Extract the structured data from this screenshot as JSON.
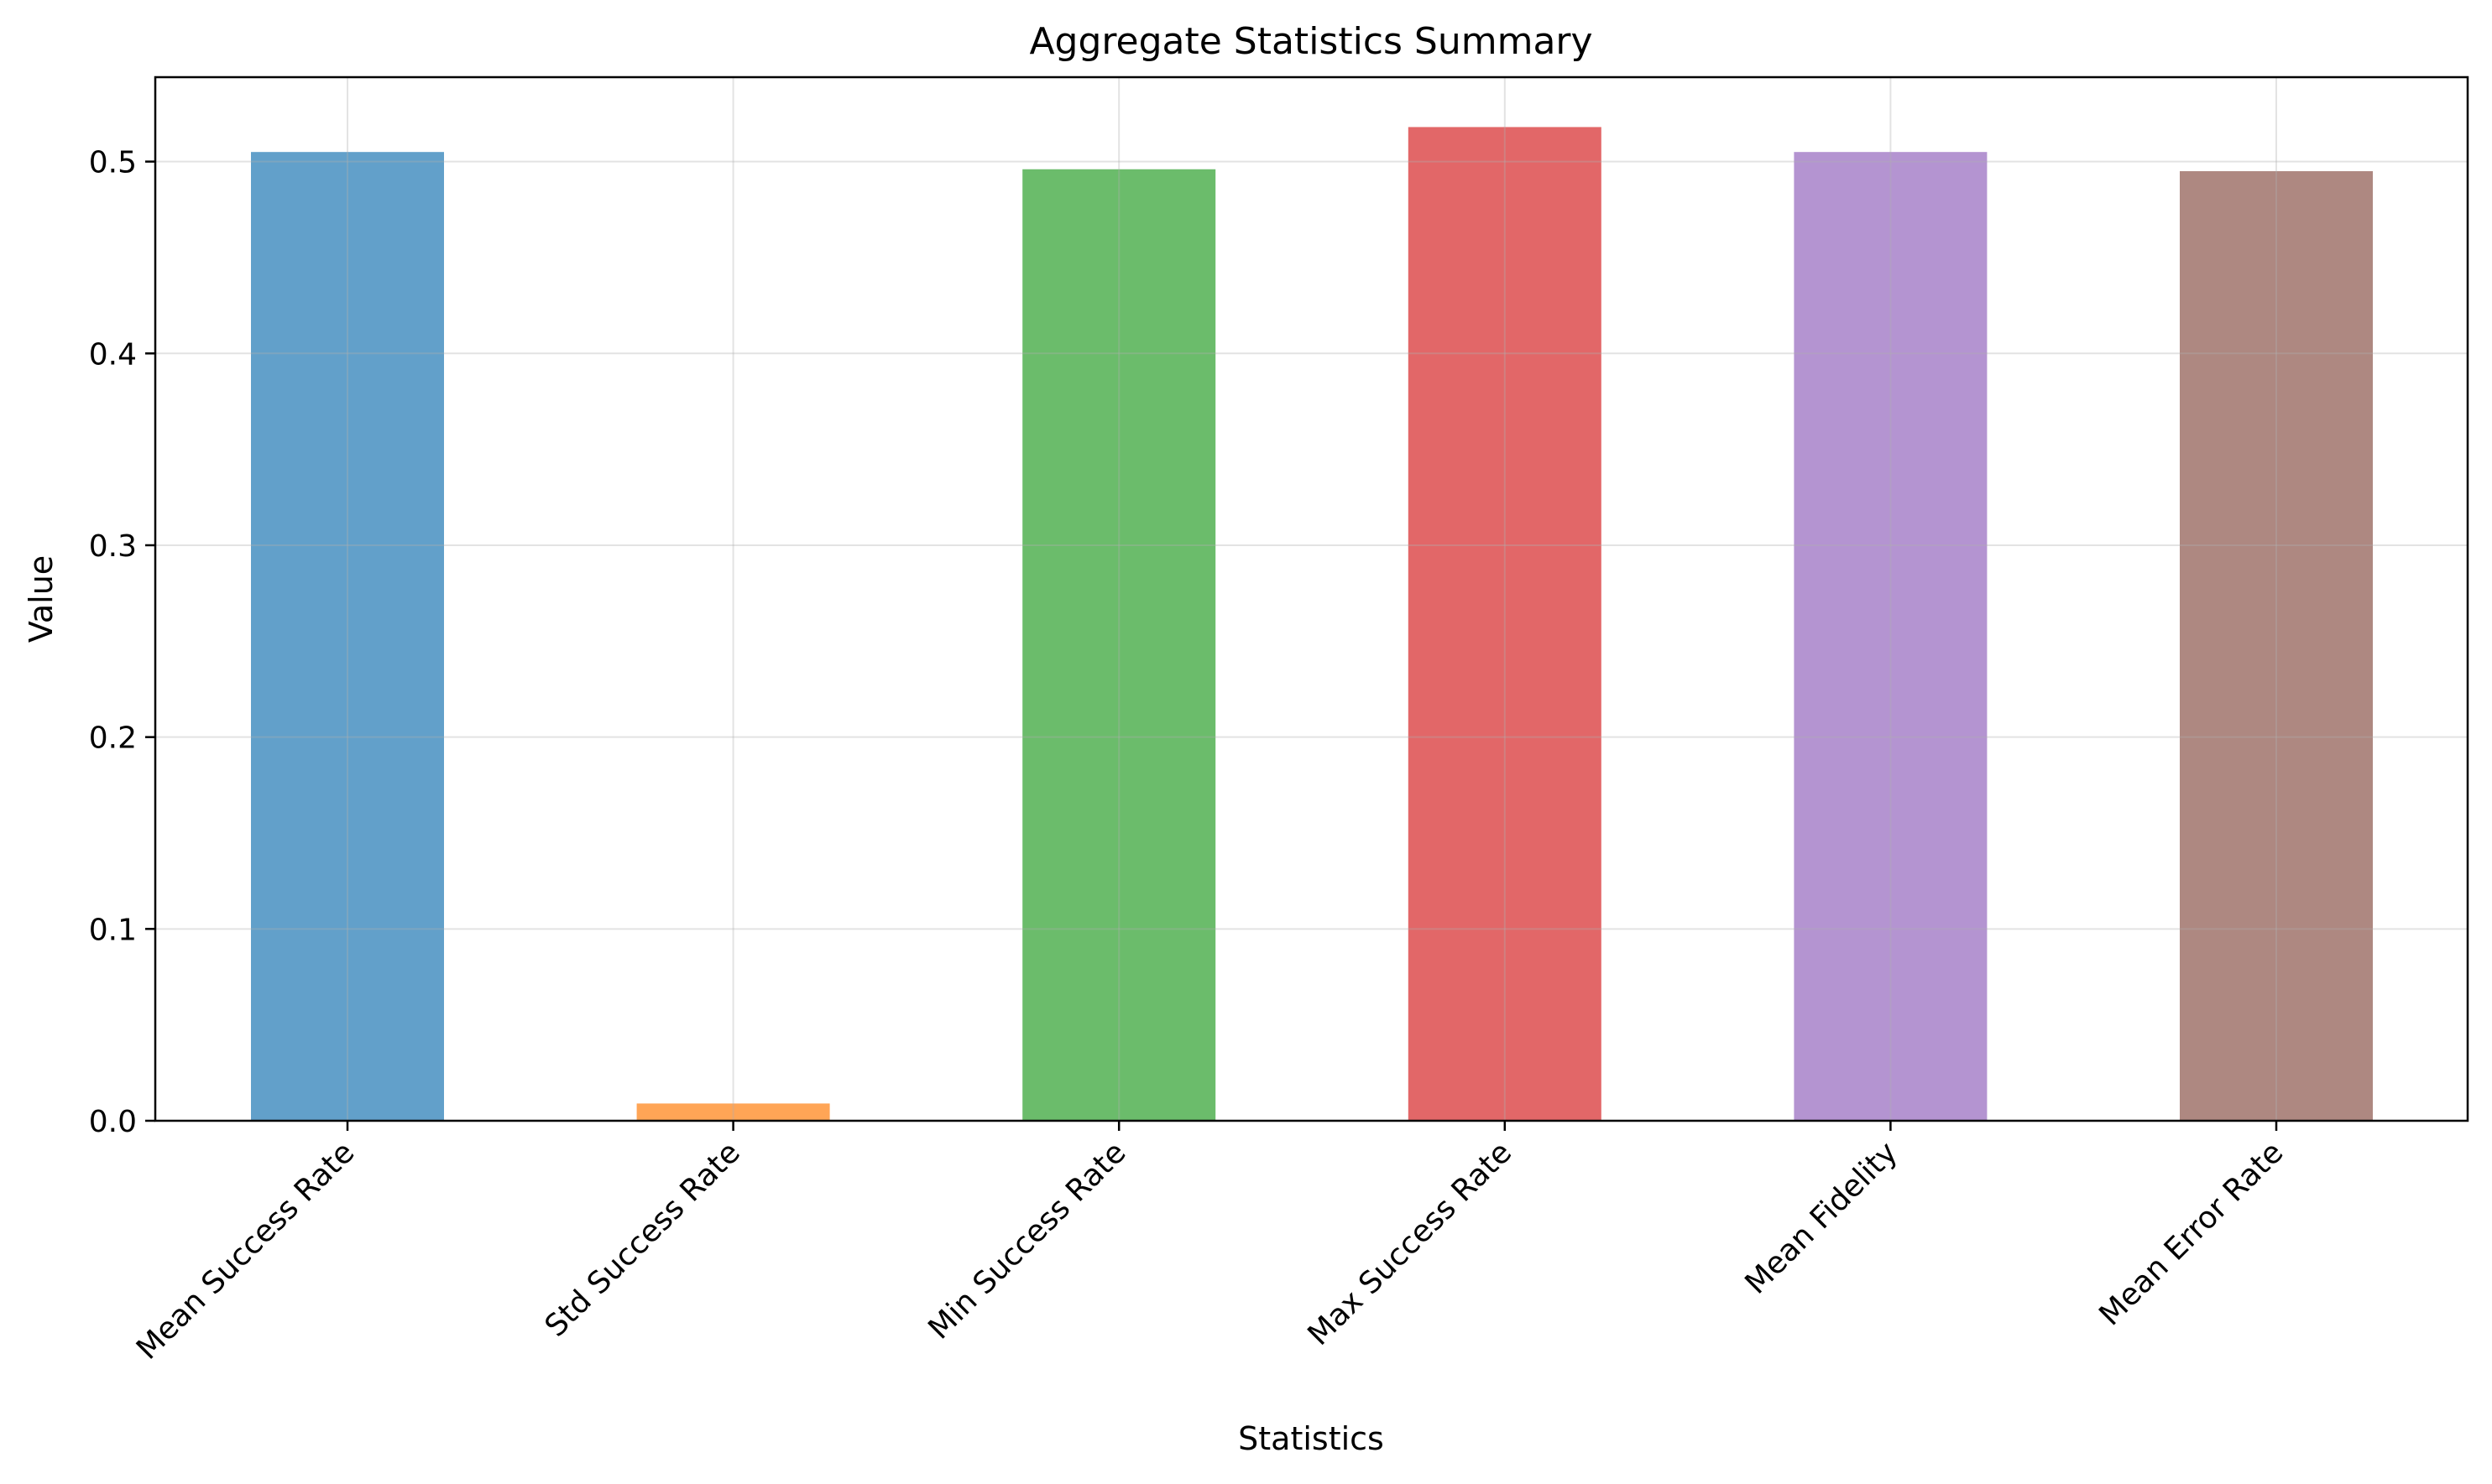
{
  "chart_data": {
    "type": "bar",
    "title": "Aggregate Statistics Summary",
    "xlabel": "Statistics",
    "ylabel": "Value",
    "categories": [
      "Mean Success Rate",
      "Std Success Rate",
      "Min Success Rate",
      "Max Success Rate",
      "Mean Fidelity",
      "Mean Error Rate"
    ],
    "values": [
      0.505,
      0.009,
      0.496,
      0.518,
      0.505,
      0.495
    ],
    "colors": [
      "#1f77b4",
      "#ff7f0e",
      "#2ca02c",
      "#d62728",
      "#9467bd",
      "#8c564b"
    ],
    "bar_opacity": 0.7,
    "ylim": [
      0,
      0.544
    ],
    "yticks": [
      0.0,
      0.1,
      0.2,
      0.3,
      0.4,
      0.5
    ],
    "ytick_labels": [
      "0.0",
      "0.1",
      "0.2",
      "0.3",
      "0.4",
      "0.5"
    ],
    "grid": true
  }
}
